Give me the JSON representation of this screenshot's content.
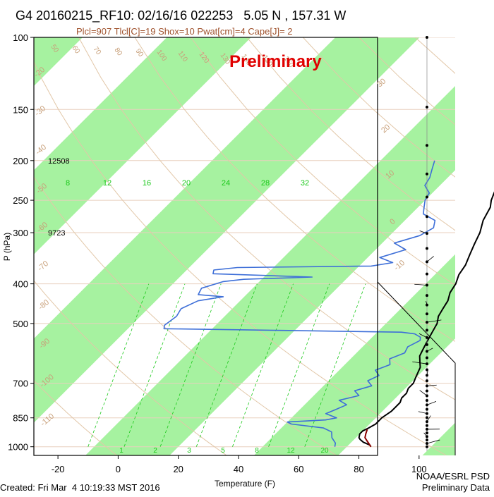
{
  "header": {
    "title": "G4 20160215_RF10: 02/16/16 022253   5.05 N , 157.31 W",
    "parcel_info": "Plcl=907 Tlcl[C]=19 Shox=10 Pwat[cm]=4 Cape[J]= 2"
  },
  "footer": {
    "created": "Created: Fri Mar  4 10:19:33 MST 2016",
    "credit_line1": "NOAA/ESRL PSD",
    "credit_line2": "Preliminary Data"
  },
  "chart_data": {
    "type": "skew-t log-p sounding",
    "stamp": "Preliminary",
    "xlabel": "Temperature (F)",
    "ylabel": "P (hPa)",
    "x_ticks": [
      -20,
      0,
      20,
      40,
      60,
      80,
      100
    ],
    "y_ticks": [
      100,
      150,
      200,
      250,
      300,
      400,
      500,
      700,
      850,
      1000
    ],
    "xlim": [
      -28,
      112
    ],
    "ylim": [
      1050,
      100
    ],
    "height_labels": [
      {
        "pressure": 200,
        "text": "12508"
      },
      {
        "pressure": 300,
        "text": "9723"
      }
    ],
    "mixing_ratio_labels": [
      "8",
      "12",
      "16",
      "20",
      "24",
      "28",
      "32"
    ],
    "mixing_ratio_bottom_labels": [
      "1",
      "2",
      "3",
      "5",
      "8",
      "12",
      "20"
    ],
    "isotherm_labels": [
      "50",
      "60",
      "70",
      "80",
      "90",
      "100",
      "110",
      "120",
      "130",
      "140",
      "150",
      "160"
    ],
    "dry_adiabat_labels": [
      "30",
      "20",
      "10",
      "0",
      "-10",
      "-20",
      "-30",
      "-40",
      "-50",
      "-60",
      "-70",
      "-80",
      "-90",
      "-100",
      "-110"
    ],
    "wind_barbs_count": 40,
    "colors": {
      "temperature": "#000000",
      "dewpoint": "#3e6fd8",
      "surface_parcel": "#8b0000",
      "band": "#a6f2a0",
      "mixing_ratio": "#18c818",
      "stamp": "#e00000",
      "axis_label": "#c8a07a",
      "subtitle": "#a0522d"
    },
    "series": [
      {
        "name": "Temperature",
        "points": [
          [
            1000,
            84
          ],
          [
            990,
            83
          ],
          [
            975,
            80
          ],
          [
            960,
            78
          ],
          [
            950,
            77
          ],
          [
            930,
            76
          ],
          [
            915,
            76
          ],
          [
            900,
            77
          ],
          [
            880,
            78
          ],
          [
            860,
            78
          ],
          [
            850,
            78
          ],
          [
            820,
            79
          ],
          [
            800,
            79
          ],
          [
            780,
            79
          ],
          [
            760,
            78
          ],
          [
            740,
            78
          ],
          [
            720,
            77
          ],
          [
            700,
            77
          ],
          [
            680,
            76
          ],
          [
            660,
            75
          ],
          [
            640,
            74
          ],
          [
            620,
            72
          ],
          [
            600,
            70
          ],
          [
            580,
            69
          ],
          [
            560,
            68
          ],
          [
            540,
            67
          ],
          [
            520,
            66
          ],
          [
            500,
            65
          ],
          [
            480,
            63
          ],
          [
            460,
            62
          ],
          [
            440,
            61
          ],
          [
            420,
            59
          ],
          [
            400,
            58
          ],
          [
            380,
            56
          ],
          [
            360,
            55
          ],
          [
            340,
            53
          ],
          [
            320,
            51
          ],
          [
            300,
            49
          ],
          [
            280,
            46
          ],
          [
            260,
            44
          ],
          [
            250,
            42
          ],
          [
            230,
            39
          ],
          [
            215,
            37
          ],
          [
            200,
            34
          ],
          [
            190,
            32
          ],
          [
            180,
            30
          ],
          [
            175,
            29
          ]
        ]
      },
      {
        "name": "Dew point",
        "points": [
          [
            1000,
            72
          ],
          [
            980,
            71
          ],
          [
            950,
            68
          ],
          [
            920,
            66
          ],
          [
            900,
            62
          ],
          [
            880,
            50
          ],
          [
            870,
            48
          ],
          [
            860,
            60
          ],
          [
            850,
            63
          ],
          [
            830,
            58
          ],
          [
            810,
            60
          ],
          [
            790,
            62
          ],
          [
            770,
            58
          ],
          [
            750,
            63
          ],
          [
            730,
            60
          ],
          [
            710,
            64
          ],
          [
            690,
            61
          ],
          [
            670,
            63
          ],
          [
            650,
            60
          ],
          [
            630,
            63
          ],
          [
            610,
            61
          ],
          [
            590,
            64
          ],
          [
            570,
            63
          ],
          [
            550,
            65
          ],
          [
            540,
            64
          ],
          [
            530,
            61
          ],
          [
            525,
            56
          ],
          [
            520,
            18
          ],
          [
            515,
            -24
          ],
          [
            505,
            -25
          ],
          [
            480,
            -24
          ],
          [
            460,
            -25
          ],
          [
            440,
            -22
          ],
          [
            430,
            -15
          ],
          [
            425,
            -24
          ],
          [
            410,
            -25
          ],
          [
            395,
            -20
          ],
          [
            390,
            -14
          ],
          [
            385,
            8
          ],
          [
            378,
            -26
          ],
          [
            370,
            -27
          ],
          [
            365,
            -20
          ],
          [
            362,
            24
          ],
          [
            355,
            30
          ],
          [
            345,
            24
          ],
          [
            330,
            30
          ],
          [
            318,
            24
          ],
          [
            305,
            30
          ],
          [
            292,
            32
          ],
          [
            280,
            30
          ],
          [
            270,
            24
          ],
          [
            260,
            22
          ],
          [
            250,
            20
          ],
          [
            240,
            19
          ],
          [
            230,
            15
          ],
          [
            220,
            14
          ],
          [
            210,
            12
          ],
          [
            200,
            10
          ]
        ]
      },
      {
        "name": "Parcel (low levels)",
        "points": [
          [
            1000,
            84
          ],
          [
            980,
            82
          ],
          [
            960,
            80
          ],
          [
            950,
            79
          ],
          [
            930,
            78
          ],
          [
            907,
            77
          ]
        ]
      }
    ]
  }
}
